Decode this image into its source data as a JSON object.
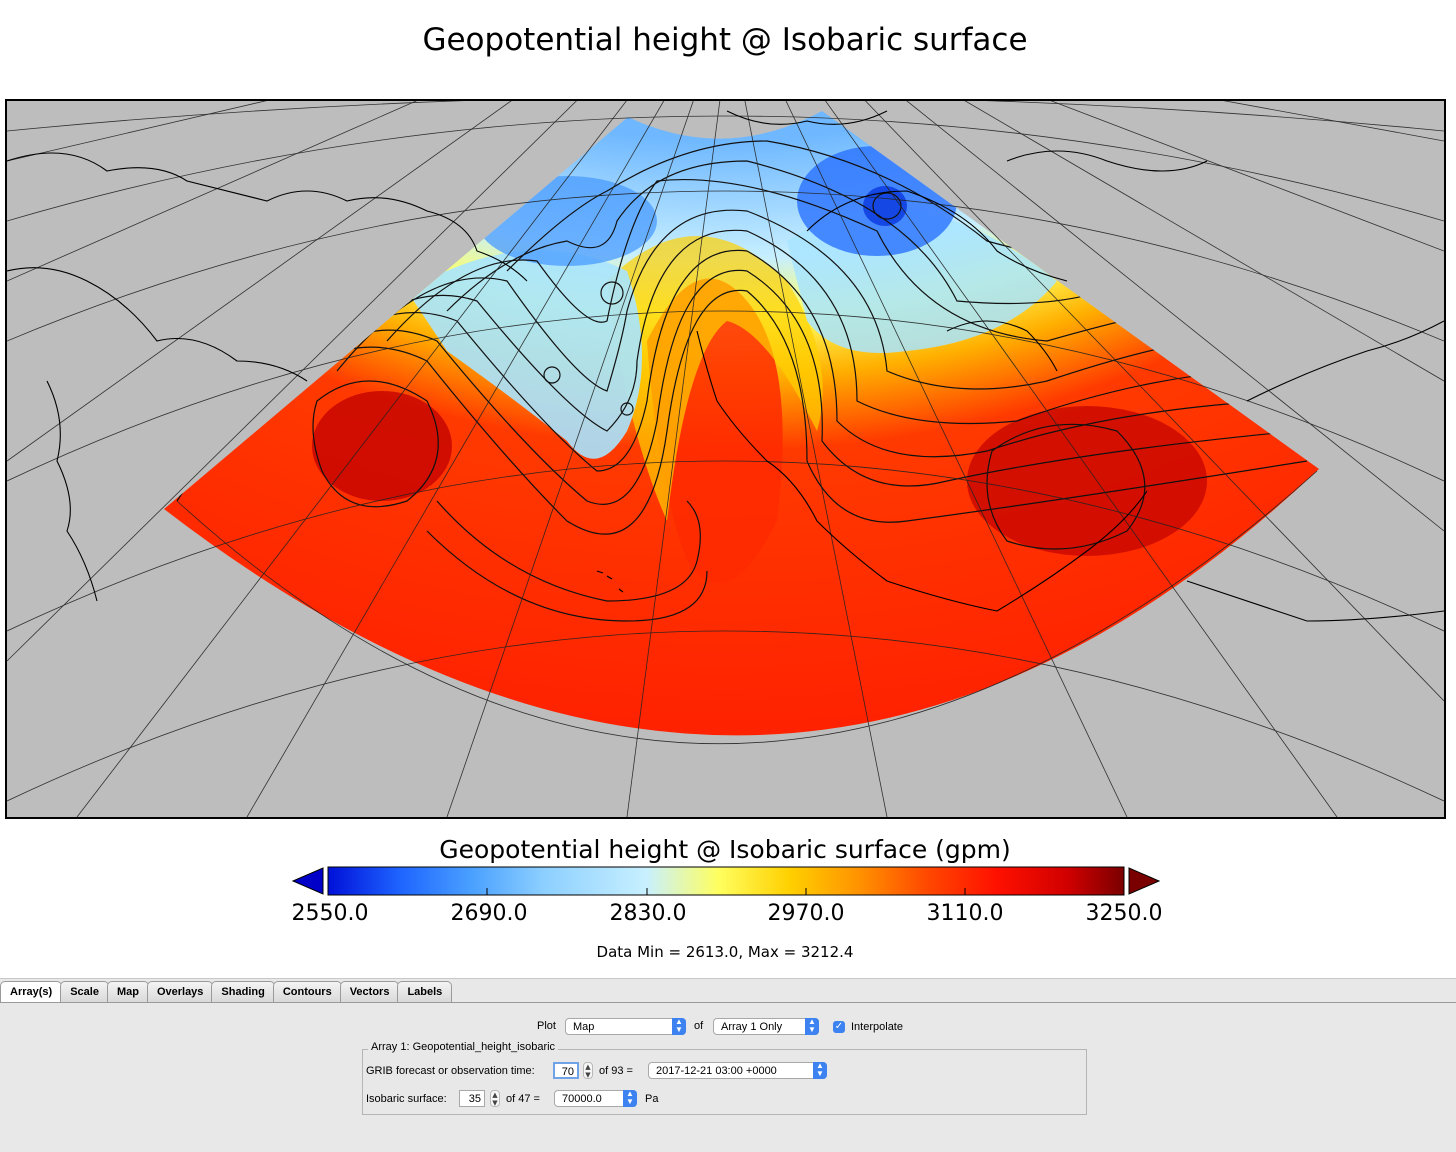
{
  "title": "Geopotential height @ Isobaric surface",
  "colorbar": {
    "title": "Geopotential height @ Isobaric surface (gpm)",
    "ticks": [
      "2550.0",
      "2690.0",
      "2830.0",
      "2970.0",
      "3110.0",
      "3250.0"
    ],
    "min": 2550,
    "max": 3250,
    "colors": [
      "#0010d8",
      "#1e64ff",
      "#4aa0ff",
      "#8ccfff",
      "#c8f0ff",
      "#ffff60",
      "#ffd000",
      "#ff9000",
      "#ff4a00",
      "#ff1000",
      "#d00000",
      "#7a0000"
    ],
    "under_color": "#0000c8",
    "over_color": "#7a0000"
  },
  "data_minmax": "Data Min = 2613.0, Max = 3212.4",
  "tabs": [
    "Array(s)",
    "Scale",
    "Map",
    "Overlays",
    "Shading",
    "Contours",
    "Vectors",
    "Labels"
  ],
  "controls": {
    "plot_label": "Plot",
    "plot_value": "Map",
    "of_label": "of",
    "array_value": "Array 1 Only",
    "interpolate_label": "Interpolate",
    "interpolate_checked": true,
    "group_title": "Array 1: Geopotential_height_isobaric",
    "time_label": "GRIB forecast or observation time:",
    "time_index": "70",
    "time_of": "of 93 =",
    "time_value": "2017-12-21 03:00 +0000",
    "surface_label": "Isobaric surface:",
    "surface_index": "35",
    "surface_of": "of 47 =",
    "surface_value": "70000.0",
    "surface_unit": "Pa"
  },
  "colors": {
    "land_background": "#bdbdbd",
    "tab_accent": "#3c82f0"
  }
}
